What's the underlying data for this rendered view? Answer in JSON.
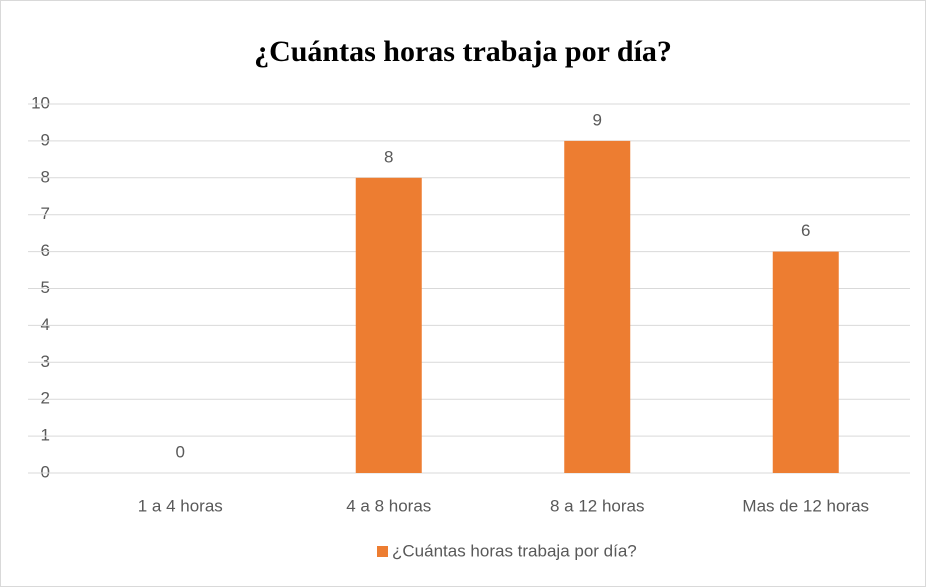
{
  "chart_data": {
    "type": "bar",
    "title": "¿Cuántas horas trabaja por día?",
    "categories": [
      "1 a 4 horas",
      "4 a 8 horas",
      "8 a 12 horas",
      "Mas de 12 horas"
    ],
    "series": [
      {
        "name": "¿Cuántas horas trabaja por día?",
        "color": "#ed7d31",
        "values": [
          0,
          8,
          9,
          6
        ]
      }
    ],
    "ylim": [
      0,
      10
    ],
    "yticks": [
      0,
      1,
      2,
      3,
      4,
      5,
      6,
      7,
      8,
      9,
      10
    ],
    "grid": true,
    "legend": "bottom"
  }
}
